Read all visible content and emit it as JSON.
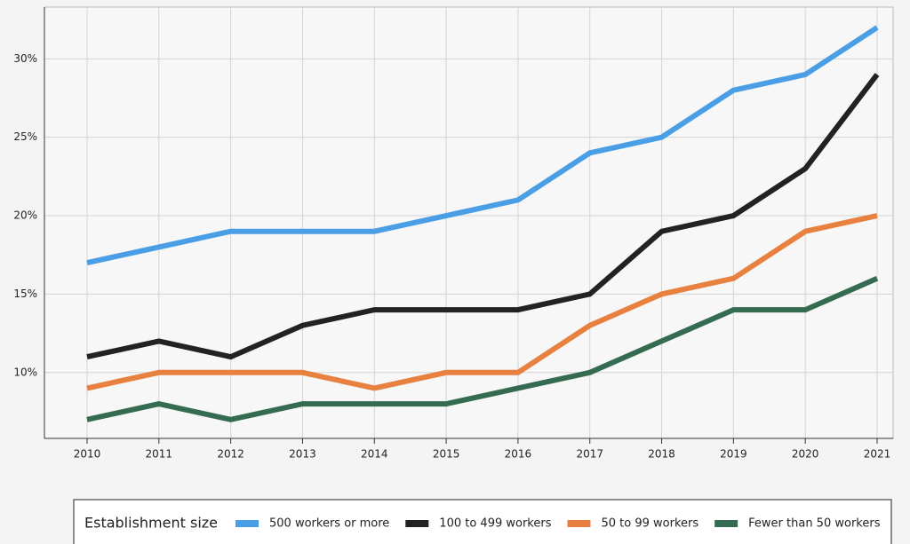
{
  "chart_data": {
    "type": "line",
    "categories": [
      "2010",
      "2011",
      "2012",
      "2013",
      "2014",
      "2015",
      "2016",
      "2017",
      "2018",
      "2019",
      "2020",
      "2021"
    ],
    "series": [
      {
        "name": "500 workers or more",
        "color": "#4a9ee6",
        "values": [
          17,
          18,
          19,
          19,
          19,
          20,
          21,
          24,
          25,
          28,
          29,
          32
        ]
      },
      {
        "name": "100 to 499 workers",
        "color": "#222222",
        "values": [
          11,
          12,
          11,
          13,
          14,
          14,
          14,
          15,
          19,
          20,
          23,
          29
        ]
      },
      {
        "name": "50 to 99 workers",
        "color": "#e8803f",
        "values": [
          9,
          10,
          10,
          10,
          9,
          10,
          10,
          13,
          15,
          16,
          19,
          20
        ]
      },
      {
        "name": "Fewer than 50 workers",
        "color": "#356b50",
        "values": [
          7,
          8,
          7,
          8,
          8,
          8,
          9,
          10,
          12,
          14,
          14,
          16
        ]
      }
    ],
    "ylim": [
      5.8,
      33.3
    ],
    "yticks": [
      {
        "value": 10,
        "label": "10%"
      },
      {
        "value": 15,
        "label": "15%"
      },
      {
        "value": 20,
        "label": "20%"
      },
      {
        "value": 25,
        "label": "25%"
      },
      {
        "value": 30,
        "label": "30%"
      }
    ],
    "grid": true,
    "legend_title": "Establishment size",
    "legend": "bottom"
  }
}
